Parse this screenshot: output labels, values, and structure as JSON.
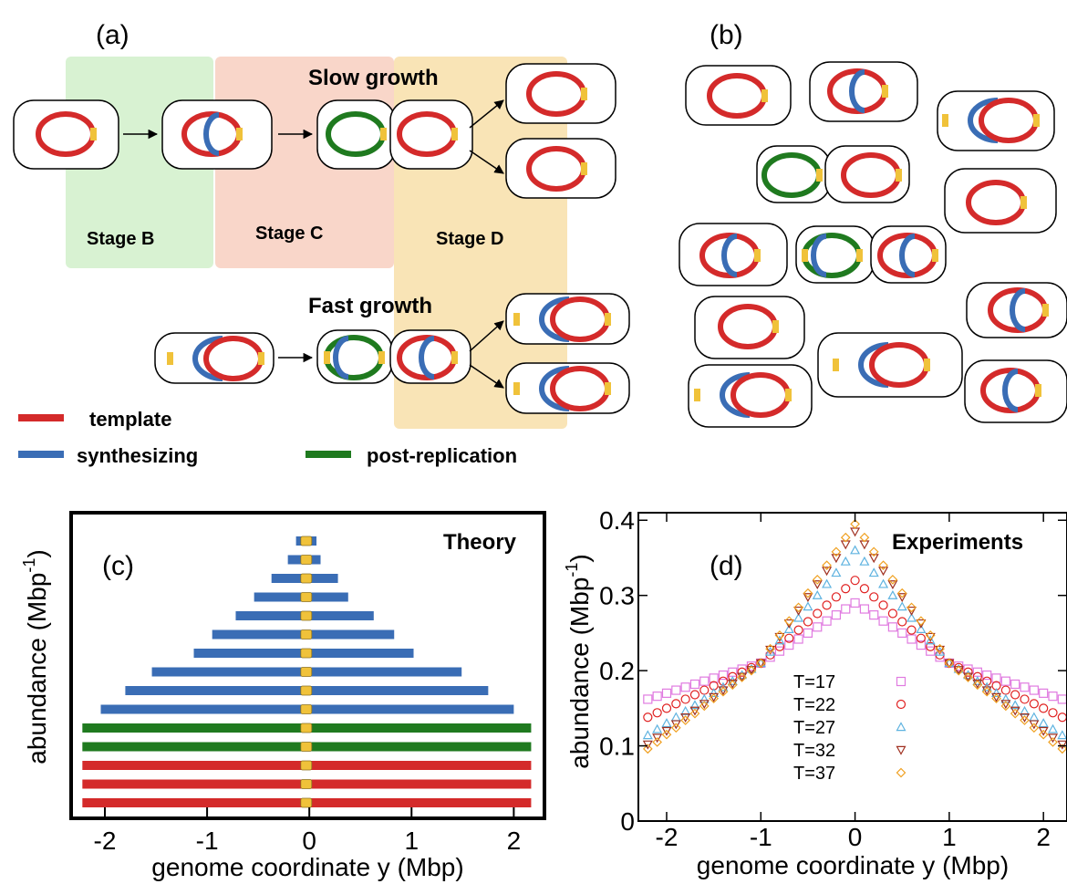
{
  "panel_a": {
    "label": "(a)",
    "slow_growth": "Slow growth",
    "fast_growth": "Fast growth",
    "stages": [
      "Stage B",
      "Stage C",
      "Stage D"
    ],
    "legend": [
      "template",
      "synthesizing",
      "post-replication"
    ]
  },
  "panel_b": {
    "label": "(b)"
  },
  "chart_data": [
    {
      "type": "range-bar",
      "label": "(c)",
      "title": "Theory",
      "xlabel": "genome coordinate y (Mbp)",
      "ylabel": [
        "abundance (Mbp",
        "-1",
        ")"
      ],
      "xlim": [
        -2.33,
        2.3
      ],
      "xticks": [
        -2,
        -1,
        0,
        1,
        2
      ],
      "bars": [
        {
          "color": "#d42a2a",
          "start": -2.22,
          "end": 2.17
        },
        {
          "color": "#d42a2a",
          "start": -2.22,
          "end": 2.17
        },
        {
          "color": "#d42a2a",
          "start": -2.22,
          "end": 2.17
        },
        {
          "color": "#1f7a1f",
          "start": -2.22,
          "end": 2.17
        },
        {
          "color": "#1f7a1f",
          "start": -2.22,
          "end": 2.17
        },
        {
          "color": "#3a6db5",
          "start": -2.04,
          "end": 2.0
        },
        {
          "color": "#3a6db5",
          "start": -1.8,
          "end": 1.75
        },
        {
          "color": "#3a6db5",
          "start": -1.54,
          "end": 1.49
        },
        {
          "color": "#3a6db5",
          "start": -1.13,
          "end": 1.02
        },
        {
          "color": "#3a6db5",
          "start": -0.95,
          "end": 0.83
        },
        {
          "color": "#3a6db5",
          "start": -0.72,
          "end": 0.63
        },
        {
          "color": "#3a6db5",
          "start": -0.54,
          "end": 0.38
        },
        {
          "color": "#3a6db5",
          "start": -0.37,
          "end": 0.28
        },
        {
          "color": "#3a6db5",
          "start": -0.21,
          "end": 0.11
        },
        {
          "color": "#3a6db5",
          "start": -0.13,
          "end": 0.07
        }
      ],
      "origin_marker": {
        "x": -0.03,
        "color": "#f0c23a"
      }
    },
    {
      "type": "scatter",
      "label": "(d)",
      "title": "Experiments",
      "xlabel": "genome coordinate y (Mbp)",
      "ylabel": [
        "abundance (Mbp",
        "-1",
        ")"
      ],
      "xlim": [
        -2.3,
        2.25
      ],
      "ylim": [
        0,
        0.41
      ],
      "xticks": [
        -2,
        -1,
        0,
        1,
        2
      ],
      "yticks": [
        0,
        0.1,
        0.2,
        0.3,
        0.4
      ],
      "x": [
        -2.2,
        -2.1,
        -2.0,
        -1.9,
        -1.8,
        -1.7,
        -1.6,
        -1.5,
        -1.4,
        -1.3,
        -1.2,
        -1.1,
        -1.0,
        -0.9,
        -0.8,
        -0.7,
        -0.6,
        -0.5,
        -0.4,
        -0.3,
        -0.2,
        -0.1,
        0,
        0.1,
        0.2,
        0.3,
        0.4,
        0.5,
        0.6,
        0.7,
        0.8,
        0.9,
        1.0,
        1.1,
        1.2,
        1.3,
        1.4,
        1.5,
        1.6,
        1.7,
        1.8,
        1.9,
        2.0,
        2.1,
        2.2
      ],
      "series": [
        {
          "name": "T=17",
          "color": "#e07be0",
          "marker": "square",
          "values": [
            0.162,
            0.166,
            0.17,
            0.174,
            0.178,
            0.182,
            0.186,
            0.19,
            0.194,
            0.198,
            0.202,
            0.206,
            0.21,
            0.218,
            0.226,
            0.234,
            0.242,
            0.25,
            0.258,
            0.266,
            0.274,
            0.282,
            0.29,
            0.282,
            0.274,
            0.266,
            0.258,
            0.25,
            0.242,
            0.234,
            0.226,
            0.218,
            0.21,
            0.206,
            0.202,
            0.198,
            0.194,
            0.19,
            0.186,
            0.182,
            0.178,
            0.174,
            0.17,
            0.166,
            0.162
          ]
        },
        {
          "name": "T=22",
          "color": "#e02020",
          "marker": "circle",
          "values": [
            0.138,
            0.144,
            0.15,
            0.156,
            0.162,
            0.168,
            0.174,
            0.18,
            0.186,
            0.192,
            0.198,
            0.204,
            0.21,
            0.221,
            0.232,
            0.243,
            0.254,
            0.265,
            0.276,
            0.287,
            0.298,
            0.309,
            0.32,
            0.309,
            0.298,
            0.287,
            0.276,
            0.265,
            0.254,
            0.243,
            0.232,
            0.221,
            0.21,
            0.204,
            0.198,
            0.192,
            0.186,
            0.18,
            0.174,
            0.168,
            0.162,
            0.156,
            0.15,
            0.144,
            0.138
          ]
        },
        {
          "name": "T=27",
          "color": "#5fb3e0",
          "marker": "triangle-up",
          "values": [
            0.114,
            0.122,
            0.13,
            0.138,
            0.146,
            0.154,
            0.162,
            0.17,
            0.178,
            0.186,
            0.194,
            0.202,
            0.21,
            0.225,
            0.24,
            0.255,
            0.27,
            0.285,
            0.3,
            0.315,
            0.33,
            0.345,
            0.36,
            0.345,
            0.33,
            0.315,
            0.3,
            0.285,
            0.27,
            0.255,
            0.24,
            0.225,
            0.21,
            0.202,
            0.194,
            0.186,
            0.178,
            0.17,
            0.162,
            0.154,
            0.146,
            0.138,
            0.13,
            0.122,
            0.114
          ]
        },
        {
          "name": "T=32",
          "color": "#a03020",
          "marker": "triangle-down",
          "values": [
            0.102,
            0.111,
            0.12,
            0.129,
            0.138,
            0.147,
            0.156,
            0.165,
            0.174,
            0.183,
            0.192,
            0.201,
            0.21,
            0.228,
            0.245,
            0.263,
            0.28,
            0.298,
            0.315,
            0.333,
            0.35,
            0.368,
            0.385,
            0.368,
            0.35,
            0.333,
            0.315,
            0.298,
            0.28,
            0.263,
            0.245,
            0.228,
            0.21,
            0.201,
            0.192,
            0.183,
            0.174,
            0.165,
            0.156,
            0.147,
            0.138,
            0.129,
            0.12,
            0.111,
            0.102
          ]
        },
        {
          "name": "T=37",
          "color": "#f0a020",
          "marker": "diamond",
          "values": [
            0.096,
            0.105,
            0.115,
            0.124,
            0.134,
            0.143,
            0.153,
            0.163,
            0.172,
            0.181,
            0.191,
            0.2,
            0.21,
            0.229,
            0.247,
            0.266,
            0.284,
            0.303,
            0.321,
            0.34,
            0.358,
            0.377,
            0.395,
            0.377,
            0.358,
            0.34,
            0.321,
            0.303,
            0.284,
            0.266,
            0.247,
            0.229,
            0.21,
            0.2,
            0.191,
            0.181,
            0.172,
            0.163,
            0.153,
            0.143,
            0.134,
            0.124,
            0.115,
            0.105,
            0.096
          ]
        }
      ]
    }
  ]
}
